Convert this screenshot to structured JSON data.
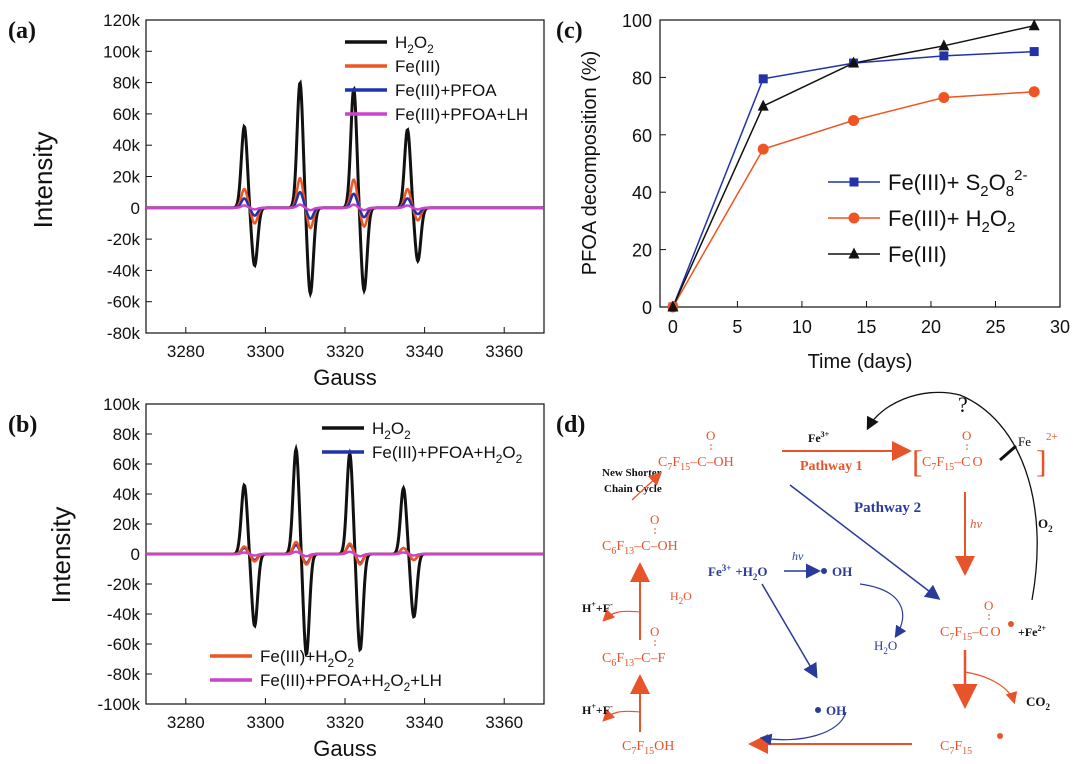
{
  "panel_labels": {
    "a": "(a)",
    "b": "(b)",
    "c": "(c)",
    "d": "(d)"
  },
  "colors": {
    "black": "#111111",
    "red": "#ee5522",
    "blue": "#2233aa",
    "magenta": "#cc44cc",
    "scheme_red": "#e8542a",
    "scheme_blue": "#2a3a9a"
  },
  "chart_data": [
    {
      "id": "a",
      "type": "line",
      "xlabel": "Gauss",
      "ylabel": "Intensity",
      "xlim": [
        3270,
        3370
      ],
      "ylim": [
        -80000,
        120000
      ],
      "xticks": [
        "3280",
        "3300",
        "3320",
        "3340",
        "3360"
      ],
      "yticks": [
        "-80k",
        "-60k",
        "-40k",
        "-20k",
        "0",
        "20k",
        "40k",
        "60k",
        "80k",
        "100k",
        "120k"
      ],
      "legend_position": "top-right",
      "peak_centers": [
        3296,
        3310,
        3323.5,
        3337
      ],
      "series": [
        {
          "name": "H2O2",
          "color": "#111111",
          "peaks": [
            52000,
            80000,
            76000,
            50000
          ],
          "troughs": [
            -37000,
            -55000,
            -53000,
            -34000
          ]
        },
        {
          "name": "Fe(III)",
          "color": "#ee5522",
          "peaks": [
            12000,
            19000,
            18000,
            12000
          ],
          "troughs": [
            -10000,
            -13000,
            -12000,
            -8000
          ]
        },
        {
          "name": "Fe(III)+PFOA",
          "color": "#2233aa",
          "peaks": [
            6000,
            10000,
            9000,
            6000
          ],
          "troughs": [
            -5000,
            -7000,
            -6000,
            -4000
          ]
        },
        {
          "name": "Fe(III)+PFOA+LH",
          "color": "#cc44cc",
          "peaks": [
            1500,
            2000,
            2000,
            1500
          ],
          "troughs": [
            -1000,
            -1500,
            -1500,
            -1000
          ]
        }
      ]
    },
    {
      "id": "b",
      "type": "line",
      "xlabel": "Gauss",
      "ylabel": "Intensity",
      "xlim": [
        3270,
        3370
      ],
      "ylim": [
        -100000,
        100000
      ],
      "xticks": [
        "3280",
        "3300",
        "3320",
        "3340",
        "3360"
      ],
      "yticks": [
        "-100k",
        "-80k",
        "-60k",
        "-40k",
        "-20k",
        "0",
        "20k",
        "40k",
        "60k",
        "80k",
        "100k"
      ],
      "legend_top": "top-right",
      "legend_bottom": "bottom-center",
      "peak_centers": [
        3296,
        3309,
        3322.5,
        3336
      ],
      "series": [
        {
          "name": "H2O2",
          "color": "#111111",
          "peaks": [
            46000,
            70000,
            67000,
            44000
          ],
          "troughs": [
            -48000,
            -67000,
            -64000,
            -42000
          ]
        },
        {
          "name": "Fe(III)+PFOA+H2O2",
          "color": "#2233aa",
          "peaks": [
            4000,
            6000,
            6000,
            4000
          ],
          "troughs": [
            -4000,
            -6000,
            -6000,
            -4000
          ]
        },
        {
          "name": "Fe(III)+H2O2",
          "color": "#ee5522",
          "peaks": [
            5000,
            8000,
            7000,
            4000
          ],
          "troughs": [
            -5000,
            -7000,
            -7000,
            -4000
          ]
        },
        {
          "name": "Fe(III)+PFOA+H2O2+LH",
          "color": "#cc44cc",
          "peaks": [
            1000,
            1500,
            1500,
            1000
          ],
          "troughs": [
            -1000,
            -1500,
            -1500,
            -1000
          ]
        }
      ]
    },
    {
      "id": "c",
      "type": "line",
      "xlabel": "Time (days)",
      "ylabel": "PFOA decomposition (%)",
      "xlim": [
        -1,
        30
      ],
      "ylim": [
        0,
        100
      ],
      "xticks": [
        "0",
        "5",
        "10",
        "15",
        "20",
        "25",
        "30"
      ],
      "yticks": [
        "0",
        "20",
        "40",
        "60",
        "80",
        "100"
      ],
      "legend_position": "center-right",
      "series": [
        {
          "name": "Fe(III)+ S2O8 2-",
          "color": "#2233aa",
          "marker": "square",
          "x": [
            0,
            7,
            14,
            21,
            28
          ],
          "y": [
            0,
            79.5,
            85,
            87.5,
            89
          ]
        },
        {
          "name": "Fe(III)+ H2O2",
          "color": "#ee5522",
          "marker": "circle",
          "x": [
            0,
            7,
            14,
            21,
            28
          ],
          "y": [
            0,
            55,
            65,
            73,
            75
          ]
        },
        {
          "name": "Fe(III)",
          "color": "#111111",
          "marker": "triangle",
          "x": [
            0,
            7,
            14,
            21,
            28
          ],
          "y": [
            0,
            70,
            85,
            91,
            98
          ]
        }
      ]
    }
  ],
  "legends": {
    "a": [
      {
        "base": "H",
        "sub1": "2",
        "mid": "O",
        "sub2": "2",
        "color": "#111111"
      },
      {
        "text": "Fe(III)",
        "color": "#ee5522"
      },
      {
        "text": "Fe(III)+PFOA",
        "color": "#2233aa"
      },
      {
        "text": "Fe(III)+PFOA+LH",
        "color": "#cc44cc"
      }
    ],
    "b_top": [
      {
        "base": "H",
        "sub1": "2",
        "mid": "O",
        "sub2": "2",
        "color": "#111111"
      },
      {
        "text": "Fe(III)+PFOA+H",
        "sub1": "2",
        "mid": "O",
        "sub2": "2",
        "color": "#2233aa"
      }
    ],
    "b_bottom": [
      {
        "text": "Fe(III)+H",
        "sub1": "2",
        "mid": "O",
        "sub2": "2",
        "color": "#ee5522"
      },
      {
        "text": "Fe(III)+PFOA+H",
        "sub1": "2",
        "mid": "O",
        "sub2": "2",
        "tail": "+LH",
        "color": "#cc44cc"
      }
    ],
    "c": [
      {
        "text": "Fe(III)+ S",
        "sub1": "2",
        "mid": "O",
        "sub2": "8",
        "sup": "2-",
        "color": "#2233aa",
        "marker": "square"
      },
      {
        "text": "Fe(III)+ H",
        "sub1": "2",
        "mid": "O",
        "sub2": "2",
        "color": "#ee5522",
        "marker": "circle"
      },
      {
        "text": "Fe(III)",
        "color": "#111111",
        "marker": "triangle"
      }
    ]
  },
  "scheme": {
    "question": "?",
    "fe3_top": "Fe",
    "fe3_top_sup": "3+",
    "pathway1": "Pathway 1",
    "pathway2": "Pathway 2",
    "new_shorter_1": "New Shorter",
    "new_shorter_2": "Chain Cycle",
    "o2": "O",
    "o2_sub": "2",
    "hv": "hv",
    "fe_mid": "Fe",
    "fe_mid_sup": "3+",
    "plus_h2o": "+H",
    "plus_h2o_sub": "2",
    "plus_h2o_tail": "O",
    "oh": "OH",
    "h2o": "H",
    "h2o_sub": "2",
    "h2o_tail": "O",
    "h_plus_f": "H",
    "h_plus_f_sup": "+",
    "h_plus_f_mid": "+F",
    "h_plus_f_sup2": "-",
    "fe2": "+Fe",
    "fe2_sup": "2+",
    "co2": "CO",
    "co2_sub": "2",
    "complex_fe": "Fe",
    "complex_sup": "2+",
    "c7": "C",
    "c7_sub1": "7",
    "c7_mid": "F",
    "c7_sub2": "15",
    "c6": "C",
    "c6_sub1": "6",
    "c6_mid": "F",
    "c6_sub2": "13",
    "o_atom": "O",
    "c_atom": "C",
    "oh_group": "OH",
    "f_atom": "F"
  }
}
